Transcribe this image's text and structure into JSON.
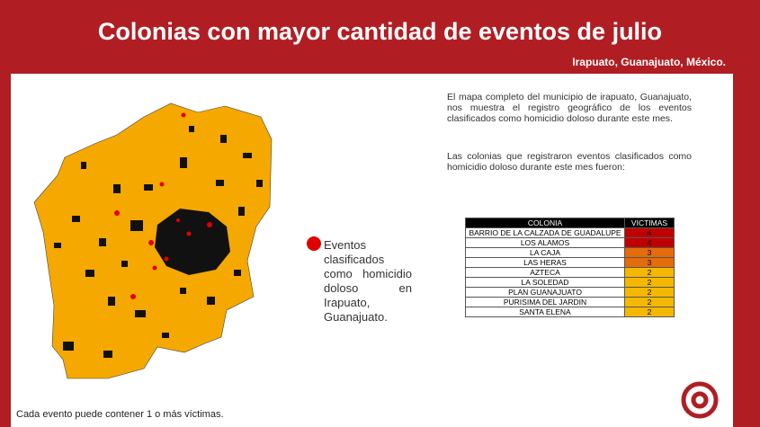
{
  "header": {
    "title": "Colonias con mayor cantidad de eventos de julio",
    "subtitle": "Irapuato, Guanajuato, México."
  },
  "description": [
    "El mapa completo del municipio de irapuato, Guanajuato, nos muestra el registro geográfico de los eventos clasificados como homicidio doloso durante este mes.",
    "Las colonias que registraron eventos clasificados como homicidio doloso durante este mes fueron:"
  ],
  "legend": {
    "label": "Eventos clasificados como homicidio doloso en Irapuato, Guanajuato."
  },
  "table": {
    "columns": [
      "COLONIA",
      "VICTIMAS"
    ],
    "rows": [
      [
        "BARRIO DE LA CALZADA DE GUADALUPE",
        4
      ],
      [
        "LOS ALAMOS",
        4
      ],
      [
        "LA CAJA",
        3
      ],
      [
        "LAS HERAS",
        3
      ],
      [
        "AZTECA",
        2
      ],
      [
        "LA SOLEDAD",
        2
      ],
      [
        "PLAN GUANAJUATO",
        2
      ],
      [
        "PURISIMA DEL JARDIN",
        2
      ],
      [
        "SANTA ELENA",
        2
      ]
    ]
  },
  "footer": {
    "note": "Cada evento puede contener 1 o más víctimas."
  }
}
